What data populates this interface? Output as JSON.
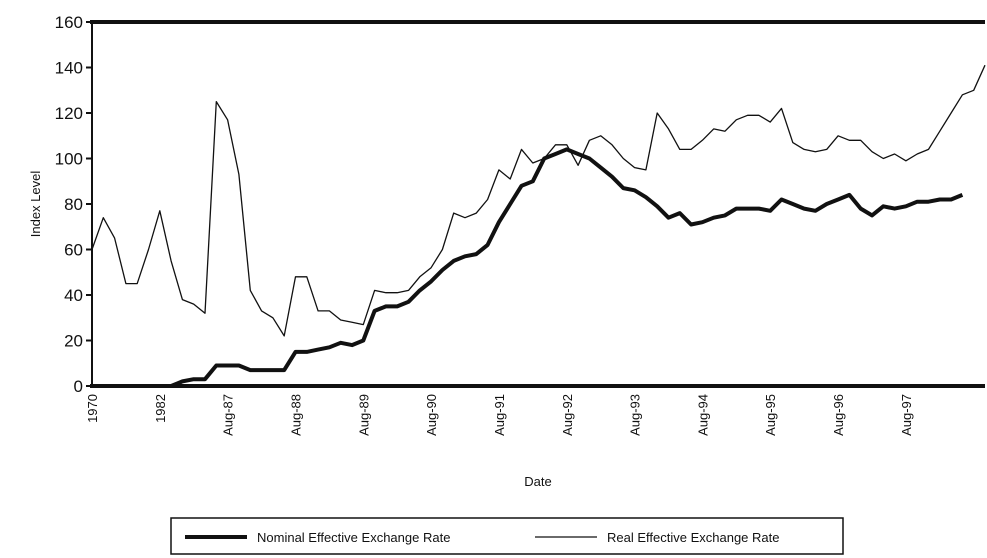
{
  "chart_data": {
    "type": "line",
    "x_label": "Date",
    "y_label": "Index Level",
    "categories": [
      "1970",
      null,
      null,
      null,
      null,
      null,
      "1982",
      null,
      null,
      null,
      null,
      null,
      "Aug-87",
      null,
      null,
      null,
      null,
      null,
      "Aug-88",
      null,
      null,
      null,
      null,
      null,
      "Aug-89",
      null,
      null,
      null,
      null,
      null,
      "Aug-90",
      null,
      null,
      null,
      null,
      null,
      "Aug-91",
      null,
      null,
      null,
      null,
      null,
      "Aug-92",
      null,
      null,
      null,
      null,
      null,
      "Aug-93",
      null,
      null,
      null,
      null,
      null,
      "Aug-94",
      null,
      null,
      null,
      null,
      null,
      "Aug-95",
      null,
      null,
      null,
      null,
      null,
      "Aug-96",
      null,
      null,
      null,
      null,
      null,
      "Aug-97",
      null,
      null,
      null,
      null,
      null,
      null,
      null
    ],
    "series": [
      {
        "name": "Nominal Effective Exchange Rate",
        "color": "#111111",
        "width": 4,
        "values": [
          0,
          0,
          0,
          0,
          0,
          0,
          0,
          0,
          2,
          3,
          3,
          9,
          9,
          9,
          7,
          7,
          7,
          7,
          15,
          15,
          16,
          17,
          19,
          18,
          20,
          33,
          35,
          35,
          37,
          42,
          46,
          51,
          55,
          57,
          58,
          62,
          72,
          80,
          88,
          90,
          100,
          102,
          104,
          102,
          100,
          96,
          92,
          87,
          86,
          83,
          79,
          74,
          76,
          71,
          72,
          74,
          75,
          78,
          78,
          78,
          77,
          82,
          80,
          78,
          77,
          80,
          82,
          84,
          78,
          75,
          79,
          78,
          79,
          81,
          81,
          82,
          82,
          84,
          null,
          null
        ]
      },
      {
        "name": "Real Effective Exchange Rate",
        "color": "#111111",
        "width": 1.3,
        "values": [
          60,
          74,
          65,
          45,
          45,
          60,
          77,
          55,
          38,
          36,
          32,
          125,
          117,
          93,
          42,
          33,
          30,
          22,
          48,
          48,
          33,
          33,
          29,
          28,
          27,
          42,
          41,
          41,
          42,
          48,
          52,
          60,
          76,
          74,
          76,
          82,
          95,
          91,
          104,
          98,
          100,
          106,
          106,
          97,
          108,
          110,
          106,
          100,
          96,
          95,
          120,
          113,
          104,
          104,
          108,
          113,
          112,
          117,
          119,
          119,
          116,
          122,
          107,
          104,
          103,
          104,
          110,
          108,
          108,
          103,
          100,
          102,
          99,
          102,
          104,
          112,
          120,
          128,
          130,
          141
        ]
      }
    ],
    "ylim": [
      0,
      160
    ],
    "yticks": [
      0,
      20,
      40,
      60,
      80,
      100,
      120,
      140,
      160
    ]
  }
}
